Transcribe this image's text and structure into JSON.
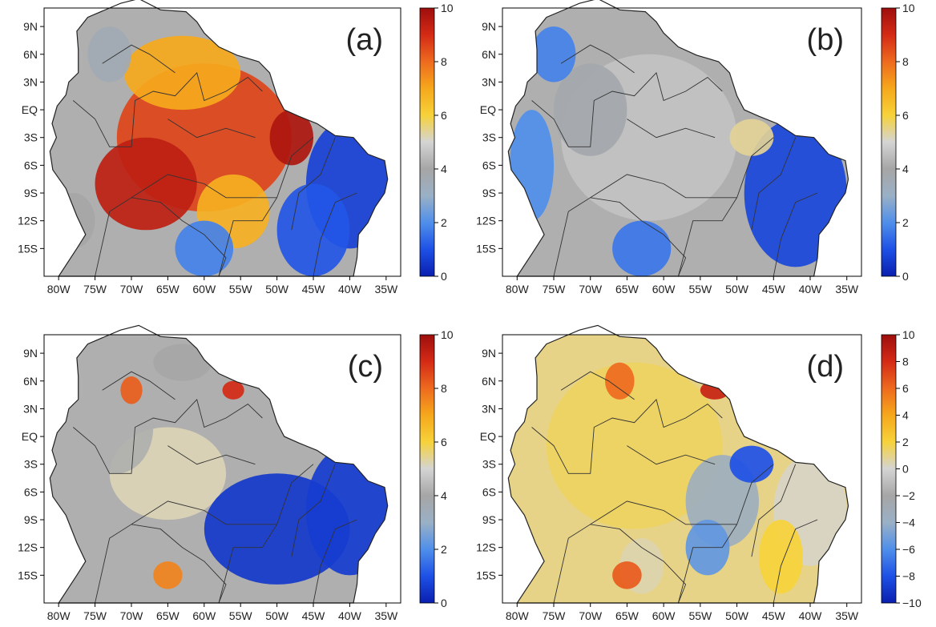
{
  "chart_data": [
    {
      "type": "heatmap",
      "panel_label": "(a)",
      "x_ticks": [
        "80W",
        "75W",
        "70W",
        "65W",
        "60W",
        "55W",
        "50W",
        "45W",
        "40W",
        "35W"
      ],
      "y_ticks": [
        "9N",
        "6N",
        "3N",
        "EQ",
        "3S",
        "6S",
        "9S",
        "12S",
        "15S"
      ],
      "xlim": [
        -82,
        -33
      ],
      "ylim": [
        -18,
        11
      ],
      "colorbar": {
        "min": 0,
        "max": 10,
        "ticks": [
          "0",
          "2",
          "4",
          "6",
          "8",
          "10"
        ],
        "colors": [
          "#0a1fb0",
          "#1e50e6",
          "#4f8fea",
          "#9ab0c6",
          "#a6a6a6",
          "#d4d4d4",
          "#f7d23a",
          "#f6a81c",
          "#ee6a1e",
          "#d42a16",
          "#9e0e0c"
        ]
      },
      "regions": [
        {
          "lon": -60,
          "lat": -3,
          "rx": 12,
          "ry": 8,
          "value": 8.6
        },
        {
          "lon": -68,
          "lat": -8,
          "rx": 7,
          "ry": 5,
          "value": 9.4
        },
        {
          "lon": -63,
          "lat": 4,
          "rx": 8,
          "ry": 4,
          "value": 7.0
        },
        {
          "lon": -48,
          "lat": -3,
          "rx": 3,
          "ry": 3,
          "value": 9.7
        },
        {
          "lon": -56,
          "lat": -11,
          "rx": 5,
          "ry": 4,
          "value": 6.8
        },
        {
          "lon": -40,
          "lat": -8,
          "rx": 6,
          "ry": 7,
          "value": 0.7
        },
        {
          "lon": -45,
          "lat": -13,
          "rx": 5,
          "ry": 5,
          "value": 1.1
        },
        {
          "lon": -60,
          "lat": -15,
          "rx": 4,
          "ry": 3,
          "value": 1.8
        },
        {
          "lon": -78,
          "lat": -12,
          "rx": 3,
          "ry": 3,
          "value": 4.0
        },
        {
          "lon": -73,
          "lat": 6,
          "rx": 3,
          "ry": 3,
          "value": 3.6
        }
      ]
    },
    {
      "type": "heatmap",
      "panel_label": "(b)",
      "x_ticks": [
        "80W",
        "75W",
        "70W",
        "65W",
        "60W",
        "55W",
        "50W",
        "45W",
        "40W",
        "35W"
      ],
      "y_ticks": [
        "9N",
        "6N",
        "3N",
        "EQ",
        "3S",
        "6S",
        "9S",
        "12S",
        "15S"
      ],
      "xlim": [
        -82,
        -33
      ],
      "ylim": [
        -18,
        11
      ],
      "colorbar": {
        "min": 0,
        "max": 10,
        "ticks": [
          "0",
          "2",
          "4",
          "6",
          "8",
          "10"
        ],
        "colors": [
          "#0a1fb0",
          "#1e50e6",
          "#4f8fea",
          "#9ab0c6",
          "#a6a6a6",
          "#d4d4d4",
          "#f7d23a",
          "#f6a81c",
          "#ee6a1e",
          "#d42a16",
          "#9e0e0c"
        ]
      },
      "regions": [
        {
          "lon": -62,
          "lat": -3,
          "rx": 12,
          "ry": 9,
          "value": 4.6
        },
        {
          "lon": -70,
          "lat": 0,
          "rx": 5,
          "ry": 5,
          "value": 3.8
        },
        {
          "lon": -42,
          "lat": -9,
          "rx": 7,
          "ry": 8,
          "value": 0.8
        },
        {
          "lon": -48,
          "lat": -3,
          "rx": 3,
          "ry": 2,
          "value": 5.4
        },
        {
          "lon": -63,
          "lat": -15,
          "rx": 4,
          "ry": 3,
          "value": 1.6
        },
        {
          "lon": -78,
          "lat": -6,
          "rx": 3,
          "ry": 6,
          "value": 2.0
        },
        {
          "lon": -75,
          "lat": 6,
          "rx": 3,
          "ry": 3,
          "value": 1.8
        }
      ]
    },
    {
      "type": "heatmap",
      "panel_label": "(c)",
      "x_ticks": [
        "80W",
        "75W",
        "70W",
        "65W",
        "60W",
        "55W",
        "50W",
        "45W",
        "40W",
        "35W"
      ],
      "y_ticks": [
        "9N",
        "6N",
        "3N",
        "EQ",
        "3S",
        "6S",
        "9S",
        "12S",
        "15S"
      ],
      "xlim": [
        -82,
        -33
      ],
      "ylim": [
        -18,
        11
      ],
      "colorbar": {
        "min": 0,
        "max": 10,
        "ticks": [
          "0",
          "2",
          "4",
          "6",
          "8",
          "10"
        ],
        "colors": [
          "#0a1fb0",
          "#1e50e6",
          "#4f8fea",
          "#9ab0c6",
          "#a6a6a6",
          "#d4d4d4",
          "#f7d23a",
          "#f6a81c",
          "#ee6a1e",
          "#d42a16",
          "#9e0e0c"
        ]
      },
      "regions": [
        {
          "lon": -65,
          "lat": -4,
          "rx": 8,
          "ry": 5,
          "value": 5.2
        },
        {
          "lon": -72,
          "lat": 1,
          "rx": 5,
          "ry": 5,
          "value": 4.2
        },
        {
          "lon": -50,
          "lat": -10,
          "rx": 10,
          "ry": 6,
          "value": 0.5
        },
        {
          "lon": -40,
          "lat": -8,
          "rx": 6,
          "ry": 7,
          "value": 0.6
        },
        {
          "lon": -65,
          "lat": -15,
          "rx": 2,
          "ry": 1.5,
          "value": 7.6
        },
        {
          "lon": -70,
          "lat": 5,
          "rx": 1.5,
          "ry": 1.5,
          "value": 8.2
        },
        {
          "lon": -56,
          "lat": 5,
          "rx": 1.5,
          "ry": 1,
          "value": 9.0
        },
        {
          "lon": -63,
          "lat": 8,
          "rx": 4,
          "ry": 2,
          "value": 4.0
        }
      ]
    },
    {
      "type": "heatmap",
      "panel_label": "(d)",
      "x_ticks": [
        "80W",
        "75W",
        "70W",
        "65W",
        "60W",
        "55W",
        "50W",
        "45W",
        "40W",
        "35W"
      ],
      "y_ticks": [
        "9N",
        "6N",
        "3N",
        "EQ",
        "3S",
        "6S",
        "9S",
        "12S",
        "15S"
      ],
      "xlim": [
        -82,
        -33
      ],
      "ylim": [
        -18,
        11
      ],
      "colorbar": {
        "min": -10,
        "max": 10,
        "ticks": [
          "−10",
          "−8",
          "−6",
          "−4",
          "−2",
          "0",
          "2",
          "4",
          "6",
          "8",
          "10"
        ],
        "colors": [
          "#0a1fb0",
          "#1e50e6",
          "#4f8fea",
          "#9ab0c6",
          "#a6a6a6",
          "#d4d4d4",
          "#f7d23a",
          "#f6a81c",
          "#ee6a1e",
          "#d42a16",
          "#9e0e0c"
        ]
      },
      "regions": [
        {
          "lon": -64,
          "lat": -1,
          "rx": 12,
          "ry": 9,
          "value": 1.5
        },
        {
          "lon": -52,
          "lat": -7,
          "rx": 5,
          "ry": 5,
          "value": -3.5
        },
        {
          "lon": -48,
          "lat": -3,
          "rx": 3,
          "ry": 2,
          "value": -8.0
        },
        {
          "lon": -54,
          "lat": -12,
          "rx": 3,
          "ry": 3,
          "value": -5.5
        },
        {
          "lon": -63,
          "lat": -14,
          "rx": 3,
          "ry": 3,
          "value": 0.5
        },
        {
          "lon": -65,
          "lat": -15,
          "rx": 2,
          "ry": 1.5,
          "value": 6.5
        },
        {
          "lon": -53,
          "lat": 5,
          "rx": 2,
          "ry": 1,
          "value": 8.5
        },
        {
          "lon": -66,
          "lat": 6,
          "rx": 2,
          "ry": 2,
          "value": 6.0
        },
        {
          "lon": -40,
          "lat": -8,
          "rx": 5,
          "ry": 6,
          "value": 0.2
        },
        {
          "lon": -44,
          "lat": -13,
          "rx": 3,
          "ry": 4,
          "value": 2.0
        }
      ]
    }
  ]
}
